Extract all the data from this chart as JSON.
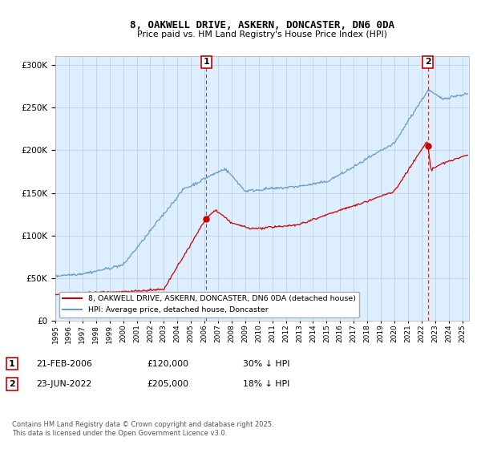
{
  "title1": "8, OAKWELL DRIVE, ASKERN, DONCASTER, DN6 0DA",
  "title2": "Price paid vs. HM Land Registry's House Price Index (HPI)",
  "legend_label1": "8, OAKWELL DRIVE, ASKERN, DONCASTER, DN6 0DA (detached house)",
  "legend_label2": "HPI: Average price, detached house, Doncaster",
  "annotation1_label": "1",
  "annotation1_date": "21-FEB-2006",
  "annotation1_price": "£120,000",
  "annotation1_hpi": "30% ↓ HPI",
  "annotation2_label": "2",
  "annotation2_date": "23-JUN-2022",
  "annotation2_price": "£205,000",
  "annotation2_hpi": "18% ↓ HPI",
  "sale1_year": 2006.13,
  "sale1_price": 120000,
  "sale2_year": 2022.47,
  "sale2_price": 205000,
  "color_red": "#cc0000",
  "color_blue": "#6699cc",
  "color_dashed": "#cc0000",
  "plot_bg_color": "#ddeeff",
  "background_color": "#ffffff",
  "grid_color": "#bbccdd",
  "footer": "Contains HM Land Registry data © Crown copyright and database right 2025.\nThis data is licensed under the Open Government Licence v3.0.",
  "ylim": [
    0,
    310000
  ],
  "xlim_start": 1995,
  "xlim_end": 2025.5
}
